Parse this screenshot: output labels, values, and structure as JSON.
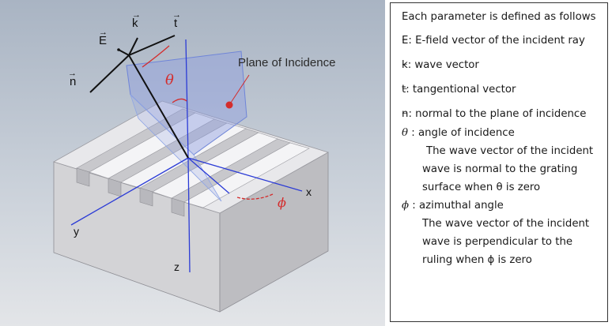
{
  "figure": {
    "symbols": {
      "k": "k",
      "t": "t",
      "E": "E",
      "n": "n",
      "theta": "θ",
      "phi": "ϕ",
      "vec_mark": "⃗"
    },
    "plane_label": "Plane of Incidence",
    "axes": {
      "x": "x",
      "y": "y",
      "z": "z"
    },
    "colors": {
      "background_top": "#a9b4c3",
      "background_bottom": "#dfe2e6",
      "block_top": "#f3f3f5",
      "block_front": "#d3d3d6",
      "block_side": "#bcbcc0",
      "plane_fill": "#8f9ee0",
      "axis_blue": "#2b3bd6",
      "angle_red": "#d42c2c"
    }
  },
  "legend": {
    "heading": "Each parameter is defined as follows",
    "items": [
      {
        "symbol": "E",
        "text": ": E-field vector of the incident ray"
      },
      {
        "symbol": "k",
        "text": ": wave vector"
      },
      {
        "symbol": "t",
        "text": ": tangentional vector"
      },
      {
        "symbol": "n",
        "text": ": normal to the plane of incidence"
      },
      {
        "symbol": "θ",
        "text": " : angle of incidence"
      }
    ],
    "theta_note": [
      "The wave vector of the incident",
      "wave is normal to the grating",
      "surface when θ is zero"
    ],
    "phi_item": {
      "symbol": "ϕ",
      "text": " : azimuthal angle"
    },
    "phi_note": [
      "The wave vector of the incident",
      "wave is perpendicular to the",
      "ruling when ϕ is zero"
    ],
    "bar_mark": "_"
  }
}
